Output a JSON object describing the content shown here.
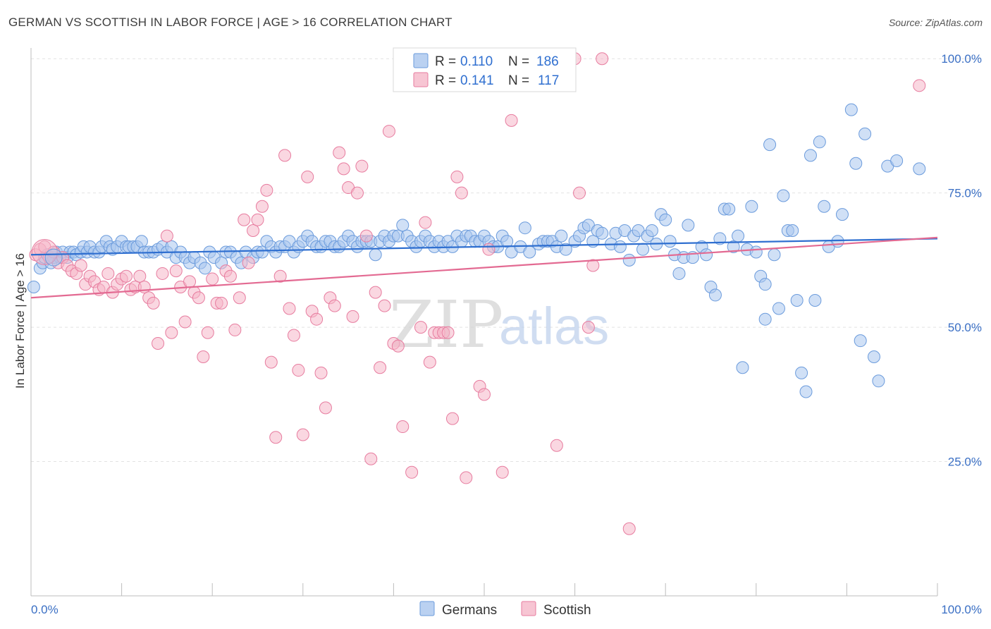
{
  "title": "GERMAN VS SCOTTISH IN LABOR FORCE | AGE > 16 CORRELATION CHART",
  "source": "Source: ZipAtlas.com",
  "watermark": {
    "zip": "ZIP",
    "atlas": "atlas"
  },
  "legend": {
    "r_label": "R =",
    "n_label": "N =",
    "rows": [
      {
        "series": "Germans",
        "r": "0.110",
        "n": "186",
        "color": "#a9c6ee",
        "stroke": "#6b9bdc"
      },
      {
        "series": "Scottish",
        "r": "0.141",
        "n": "117",
        "color": "#f5b6c8",
        "stroke": "#e77c9f"
      }
    ]
  },
  "chart_data": {
    "type": "scatter",
    "title": "GERMAN VS SCOTTISH IN LABOR FORCE | AGE > 16 CORRELATION CHART",
    "xlabel": "",
    "ylabel": "In Labor Force | Age > 16",
    "xlim": [
      0,
      100
    ],
    "ylim": [
      0,
      102
    ],
    "x_tick_labels": [
      "0.0%",
      "100.0%"
    ],
    "y_ticks": [
      25,
      50,
      75,
      100
    ],
    "y_tick_labels": [
      "25.0%",
      "50.0%",
      "75.0%",
      "100.0%"
    ],
    "grid": true,
    "legend_position": "top-center",
    "series": [
      {
        "name": "Germans",
        "color": "#5b8fd8",
        "trend": {
          "x": [
            0,
            100
          ],
          "y": [
            63.5,
            66.5
          ],
          "color": "#2f6fd0"
        },
        "points": [
          [
            0.3,
            57.5
          ],
          [
            1,
            61
          ],
          [
            1.3,
            62
          ],
          [
            1.5,
            63
          ],
          [
            1.8,
            63.5
          ],
          [
            2.2,
            62
          ],
          [
            2.5,
            63
          ],
          [
            2.8,
            64
          ],
          [
            3.2,
            63
          ],
          [
            3.5,
            64
          ],
          [
            4,
            63
          ],
          [
            4.3,
            64
          ],
          [
            4.7,
            64
          ],
          [
            5,
            63.5
          ],
          [
            5.5,
            64
          ],
          [
            5.8,
            65
          ],
          [
            6.2,
            64
          ],
          [
            6.5,
            65
          ],
          [
            7,
            64
          ],
          [
            7.5,
            64
          ],
          [
            7.8,
            65
          ],
          [
            8.3,
            66
          ],
          [
            8.7,
            65
          ],
          [
            9,
            64.5
          ],
          [
            9.5,
            65
          ],
          [
            10,
            66
          ],
          [
            10.5,
            65
          ],
          [
            10.8,
            65
          ],
          [
            11.3,
            65
          ],
          [
            11.7,
            65
          ],
          [
            12.2,
            66
          ],
          [
            12.5,
            64
          ],
          [
            13,
            64
          ],
          [
            13.5,
            64
          ],
          [
            14,
            64.5
          ],
          [
            14.5,
            65
          ],
          [
            15,
            64
          ],
          [
            15.5,
            65
          ],
          [
            16,
            63
          ],
          [
            16.5,
            64
          ],
          [
            17,
            63
          ],
          [
            17.5,
            62
          ],
          [
            18,
            63
          ],
          [
            18.7,
            62
          ],
          [
            19.2,
            61
          ],
          [
            19.7,
            64
          ],
          [
            20.2,
            63
          ],
          [
            21,
            62
          ],
          [
            21.5,
            64
          ],
          [
            22,
            64
          ],
          [
            22.7,
            63
          ],
          [
            23.2,
            62
          ],
          [
            23.7,
            64
          ],
          [
            24.5,
            63
          ],
          [
            25,
            64
          ],
          [
            25.5,
            64
          ],
          [
            26,
            66
          ],
          [
            26.5,
            65
          ],
          [
            27,
            64
          ],
          [
            27.5,
            65
          ],
          [
            28,
            65
          ],
          [
            28.5,
            66
          ],
          [
            29,
            64
          ],
          [
            29.5,
            65
          ],
          [
            30,
            66
          ],
          [
            30.5,
            67
          ],
          [
            31,
            66
          ],
          [
            31.5,
            65
          ],
          [
            32,
            65
          ],
          [
            32.5,
            66
          ],
          [
            33,
            66
          ],
          [
            33.5,
            65
          ],
          [
            34,
            65
          ],
          [
            34.5,
            66
          ],
          [
            35,
            67
          ],
          [
            35.5,
            66
          ],
          [
            36,
            65
          ],
          [
            36.5,
            66
          ],
          [
            37,
            66
          ],
          [
            37.5,
            66
          ],
          [
            38,
            63.5
          ],
          [
            38.5,
            66
          ],
          [
            39,
            67
          ],
          [
            39.5,
            66
          ],
          [
            40,
            67
          ],
          [
            40.5,
            67
          ],
          [
            41,
            69
          ],
          [
            41.5,
            67
          ],
          [
            42,
            66
          ],
          [
            42.5,
            65
          ],
          [
            43,
            66
          ],
          [
            43.5,
            67
          ],
          [
            44,
            66
          ],
          [
            44.5,
            65
          ],
          [
            45,
            66
          ],
          [
            45.5,
            65
          ],
          [
            46,
            66
          ],
          [
            46.5,
            65
          ],
          [
            47,
            67
          ],
          [
            47.5,
            66
          ],
          [
            48,
            67
          ],
          [
            48.5,
            67
          ],
          [
            49,
            66
          ],
          [
            49.5,
            66
          ],
          [
            50,
            67
          ],
          [
            50.5,
            66
          ],
          [
            51,
            65
          ],
          [
            51.5,
            65
          ],
          [
            52,
            67
          ],
          [
            52.5,
            66
          ],
          [
            53,
            64
          ],
          [
            54,
            65
          ],
          [
            54.5,
            68.5
          ],
          [
            55,
            64
          ],
          [
            56,
            65.5
          ],
          [
            56.5,
            66
          ],
          [
            57,
            66
          ],
          [
            57.5,
            66
          ],
          [
            58,
            65
          ],
          [
            58.5,
            67
          ],
          [
            59,
            64.5
          ],
          [
            60,
            66
          ],
          [
            60.5,
            67
          ],
          [
            61,
            68.5
          ],
          [
            61.5,
            69
          ],
          [
            62,
            66
          ],
          [
            62.5,
            68
          ],
          [
            63,
            67.5
          ],
          [
            64,
            65.5
          ],
          [
            64.5,
            67.5
          ],
          [
            65,
            65
          ],
          [
            65.5,
            68
          ],
          [
            66,
            62.5
          ],
          [
            66.5,
            67
          ],
          [
            67,
            68
          ],
          [
            67.5,
            64.5
          ],
          [
            68,
            67
          ],
          [
            68.5,
            68
          ],
          [
            69,
            65.5
          ],
          [
            69.5,
            71
          ],
          [
            70,
            70
          ],
          [
            70.5,
            66
          ],
          [
            71,
            63.5
          ],
          [
            71.5,
            60
          ],
          [
            72,
            63
          ],
          [
            72.5,
            69
          ],
          [
            73,
            63
          ],
          [
            74,
            65
          ],
          [
            74.5,
            63.5
          ],
          [
            75,
            57.5
          ],
          [
            75.5,
            56
          ],
          [
            76,
            66.5
          ],
          [
            76.5,
            72
          ],
          [
            77,
            72
          ],
          [
            77.5,
            65
          ],
          [
            78,
            67
          ],
          [
            78.5,
            42.5
          ],
          [
            79,
            64.5
          ],
          [
            79.5,
            72.5
          ],
          [
            80,
            64
          ],
          [
            80.5,
            59.5
          ],
          [
            81,
            58
          ],
          [
            81.5,
            84
          ],
          [
            81,
            51.5
          ],
          [
            82,
            63.5
          ],
          [
            82.5,
            53.5
          ],
          [
            83,
            74.5
          ],
          [
            83.5,
            68
          ],
          [
            84,
            68
          ],
          [
            84.5,
            55
          ],
          [
            85,
            41.5
          ],
          [
            85.5,
            38
          ],
          [
            86,
            82
          ],
          [
            86.5,
            55
          ],
          [
            87,
            84.5
          ],
          [
            87.5,
            72.5
          ],
          [
            88,
            65
          ],
          [
            89,
            66
          ],
          [
            89.5,
            71
          ],
          [
            90.5,
            90.5
          ],
          [
            91,
            80.5
          ],
          [
            91.5,
            47.5
          ],
          [
            92,
            86
          ],
          [
            93,
            44.5
          ],
          [
            93.5,
            40
          ],
          [
            94.5,
            80
          ],
          [
            95.5,
            81
          ],
          [
            98,
            79.5
          ]
        ]
      },
      {
        "name": "Scottish",
        "color": "#eb7fa3",
        "trend": {
          "x": [
            0,
            100
          ],
          "y": [
            55.5,
            66.7
          ],
          "color": "#e36a92"
        },
        "points": [
          [
            0.5,
            63.5
          ],
          [
            1,
            64.5
          ],
          [
            1.5,
            65
          ],
          [
            2,
            63
          ],
          [
            2.5,
            64
          ],
          [
            3,
            62
          ],
          [
            3.5,
            63
          ],
          [
            4,
            61.5
          ],
          [
            4.5,
            60.5
          ],
          [
            5,
            60
          ],
          [
            5.5,
            61.5
          ],
          [
            6,
            58
          ],
          [
            6.5,
            59.5
          ],
          [
            7,
            58.5
          ],
          [
            7.5,
            57
          ],
          [
            8,
            57.5
          ],
          [
            8.5,
            60
          ],
          [
            9,
            56.5
          ],
          [
            9.5,
            58
          ],
          [
            10,
            59
          ],
          [
            10.5,
            59.5
          ],
          [
            11,
            57
          ],
          [
            11.5,
            57.5
          ],
          [
            12,
            59.5
          ],
          [
            12.5,
            57.5
          ],
          [
            13,
            55.5
          ],
          [
            13.5,
            54.5
          ],
          [
            14,
            47
          ],
          [
            14.5,
            60
          ],
          [
            15,
            67
          ],
          [
            15.5,
            49
          ],
          [
            16,
            60.5
          ],
          [
            16.5,
            57.5
          ],
          [
            17,
            51
          ],
          [
            17.5,
            58.5
          ],
          [
            18,
            56.5
          ],
          [
            18.5,
            55.5
          ],
          [
            19,
            44.5
          ],
          [
            19.5,
            49
          ],
          [
            20,
            59
          ],
          [
            20.5,
            54.5
          ],
          [
            21,
            54.5
          ],
          [
            21.5,
            60.5
          ],
          [
            22,
            59.5
          ],
          [
            22.5,
            49.5
          ],
          [
            23,
            55.5
          ],
          [
            23.5,
            70
          ],
          [
            24,
            62
          ],
          [
            24.5,
            68
          ],
          [
            25,
            70
          ],
          [
            25.5,
            72.5
          ],
          [
            26,
            75.5
          ],
          [
            26.5,
            43.5
          ],
          [
            27,
            29.5
          ],
          [
            27.5,
            59.5
          ],
          [
            28,
            82
          ],
          [
            28.5,
            53.5
          ],
          [
            29,
            48.5
          ],
          [
            29.5,
            42
          ],
          [
            30,
            30
          ],
          [
            30.5,
            78
          ],
          [
            31,
            53
          ],
          [
            31.5,
            51.5
          ],
          [
            32,
            41.5
          ],
          [
            32.5,
            35
          ],
          [
            33,
            55.5
          ],
          [
            33.5,
            54
          ],
          [
            34,
            82.5
          ],
          [
            34.5,
            79.5
          ],
          [
            35,
            76
          ],
          [
            35.5,
            52
          ],
          [
            36,
            75
          ],
          [
            36.5,
            80
          ],
          [
            37,
            67
          ],
          [
            37.5,
            25.5
          ],
          [
            38,
            56.5
          ],
          [
            38.5,
            42.5
          ],
          [
            39,
            54
          ],
          [
            39.5,
            86.5
          ],
          [
            40,
            47
          ],
          [
            40.5,
            46.5
          ],
          [
            41,
            31.5
          ],
          [
            42,
            23
          ],
          [
            43,
            50
          ],
          [
            43.5,
            69.5
          ],
          [
            44,
            43.5
          ],
          [
            44.5,
            49
          ],
          [
            45,
            49
          ],
          [
            45.5,
            49
          ],
          [
            46,
            49
          ],
          [
            46.5,
            33
          ],
          [
            47,
            78
          ],
          [
            47.5,
            75
          ],
          [
            48,
            22
          ],
          [
            49.5,
            39
          ],
          [
            50,
            37.5
          ],
          [
            50.5,
            64.5
          ],
          [
            52,
            23
          ],
          [
            53,
            88.5
          ],
          [
            56,
            100
          ],
          [
            57,
            100
          ],
          [
            58,
            28
          ],
          [
            60,
            100
          ],
          [
            60.5,
            75
          ],
          [
            61.5,
            50
          ],
          [
            62,
            61.5
          ],
          [
            63,
            100
          ],
          [
            66,
            12.5
          ],
          [
            98,
            95
          ]
        ]
      }
    ]
  },
  "bottom_legend": [
    {
      "label": "Germans",
      "color": "#a9c6ee",
      "stroke": "#6b9bdc"
    },
    {
      "label": "Scottish",
      "color": "#f5b6c8",
      "stroke": "#e77c9f"
    }
  ]
}
